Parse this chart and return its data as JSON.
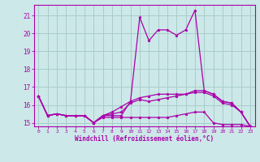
{
  "xlabel": "Windchill (Refroidissement éolien,°C)",
  "ylabel": "",
  "background_color": "#cce8e8",
  "grid_color": "#aacccc",
  "line_color": "#aa00aa",
  "xlim": [
    -0.5,
    23.5
  ],
  "ylim": [
    14.8,
    21.6
  ],
  "xticks": [
    0,
    1,
    2,
    3,
    4,
    5,
    6,
    7,
    8,
    9,
    10,
    11,
    12,
    13,
    14,
    15,
    16,
    17,
    18,
    19,
    20,
    21,
    22,
    23
  ],
  "yticks": [
    15,
    16,
    17,
    18,
    19,
    20,
    21
  ],
  "series": [
    [
      16.5,
      15.4,
      15.5,
      15.4,
      15.4,
      15.4,
      15.0,
      15.4,
      15.4,
      15.4,
      16.2,
      20.9,
      19.6,
      20.2,
      20.2,
      19.9,
      20.2,
      21.3,
      16.8,
      16.6,
      16.2,
      16.1,
      15.6,
      14.8
    ],
    [
      16.5,
      15.4,
      15.5,
      15.4,
      15.4,
      15.4,
      15.0,
      15.4,
      15.5,
      15.6,
      16.1,
      16.3,
      16.2,
      16.3,
      16.4,
      16.5,
      16.6,
      16.8,
      16.8,
      16.6,
      16.2,
      16.1,
      15.6,
      14.8
    ],
    [
      16.5,
      15.4,
      15.5,
      15.4,
      15.4,
      15.4,
      15.0,
      15.3,
      15.3,
      15.3,
      15.3,
      15.3,
      15.3,
      15.3,
      15.3,
      15.4,
      15.5,
      15.6,
      15.6,
      15.0,
      14.9,
      14.9,
      14.9,
      14.8
    ],
    [
      16.5,
      15.4,
      15.5,
      15.4,
      15.4,
      15.4,
      15.0,
      15.4,
      15.6,
      15.9,
      16.2,
      16.4,
      16.5,
      16.6,
      16.6,
      16.6,
      16.6,
      16.7,
      16.7,
      16.5,
      16.1,
      16.0,
      15.6,
      14.8
    ]
  ]
}
